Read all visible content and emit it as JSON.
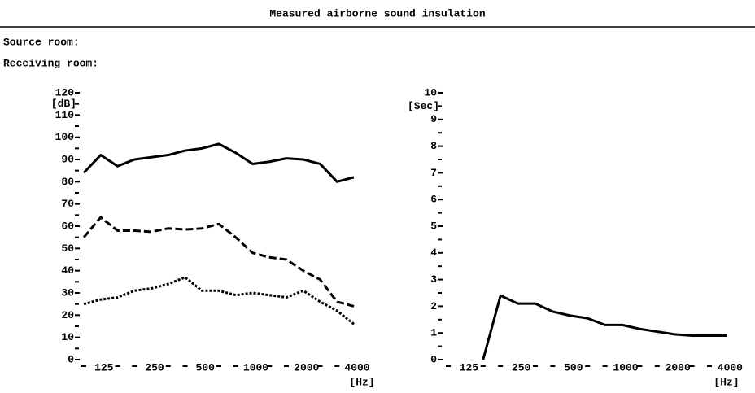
{
  "header": {
    "title": "Measured airborne sound insulation",
    "source_room": "Source room:",
    "receiving_room": "Receiving room:"
  },
  "chart_data": [
    {
      "type": "line",
      "y_label": "[dB]",
      "x_label": "[Hz]",
      "categories": [
        null,
        "125",
        null,
        null,
        "250",
        null,
        null,
        "500",
        null,
        null,
        "1000",
        null,
        null,
        "2000",
        null,
        null,
        "4000"
      ],
      "ylim": [
        0,
        120
      ],
      "yticks": [
        0,
        10,
        20,
        30,
        40,
        50,
        60,
        70,
        80,
        90,
        100,
        110,
        120
      ],
      "series": [
        {
          "color": "#000000",
          "style": "solid",
          "values": [
            84,
            92,
            87,
            90,
            91,
            92,
            94,
            95,
            97,
            93,
            88,
            89,
            90.5,
            90,
            88,
            80,
            82
          ]
        },
        {
          "color": "#000000",
          "style": "dashed",
          "values": [
            55,
            64,
            58,
            58,
            57.5,
            59,
            58.5,
            59,
            61,
            55,
            48,
            46,
            45,
            40,
            36,
            26,
            24
          ]
        },
        {
          "color": "#000000",
          "style": "dotted",
          "values": [
            25,
            27,
            28,
            31,
            32,
            34,
            37,
            31,
            31,
            29,
            30,
            29,
            28,
            31,
            26,
            22,
            16
          ]
        }
      ]
    },
    {
      "type": "line",
      "y_label": "[Sec]",
      "x_label": "[Hz]",
      "categories": [
        null,
        "125",
        null,
        null,
        "250",
        null,
        null,
        "500",
        null,
        null,
        "1000",
        null,
        null,
        "2000",
        null,
        null,
        "4000"
      ],
      "ylim": [
        0,
        10
      ],
      "yticks": [
        0,
        1,
        2,
        3,
        4,
        5,
        6,
        7,
        8,
        9,
        10
      ],
      "series": [
        {
          "color": "#000000",
          "style": "solid",
          "values": [
            null,
            null,
            0,
            2.4,
            2.1,
            2.1,
            1.8,
            1.65,
            1.55,
            1.3,
            1.3,
            1.15,
            1.05,
            0.95,
            0.9,
            0.9,
            0.9
          ]
        }
      ]
    }
  ]
}
